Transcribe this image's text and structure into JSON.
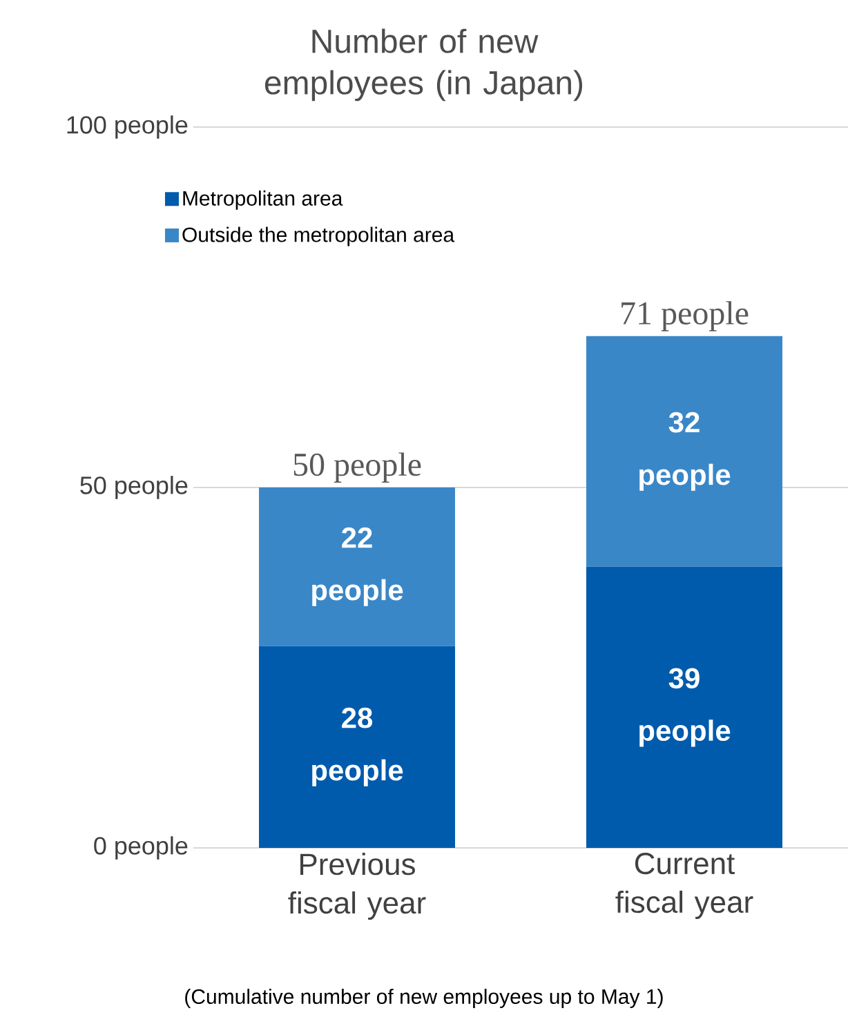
{
  "chart_data": {
    "type": "bar",
    "stacked": true,
    "title": "Number of new employees (in Japan)",
    "categories": [
      "Previous fiscal year",
      "Current fiscal year"
    ],
    "series": [
      {
        "name": "Metropolitan area",
        "color": "#005bac",
        "values": [
          28,
          39
        ],
        "value_labels": [
          "28 people",
          "39 people"
        ]
      },
      {
        "name": "Outside the metropolitan area",
        "color": "#3a87c8",
        "values": [
          22,
          32
        ],
        "value_labels": [
          "22 people",
          "32 people"
        ]
      }
    ],
    "totals": [
      "50 people",
      "71 people"
    ],
    "ylim": [
      0,
      100
    ],
    "yticks": [
      {
        "value": 0,
        "label": "0 people"
      },
      {
        "value": 50,
        "label": "50 people"
      },
      {
        "value": 100,
        "label": "100 people"
      }
    ],
    "grid": "y",
    "legend": "top left",
    "annotations": [
      "(Cumulative number of new employees up to May 1)"
    ]
  }
}
